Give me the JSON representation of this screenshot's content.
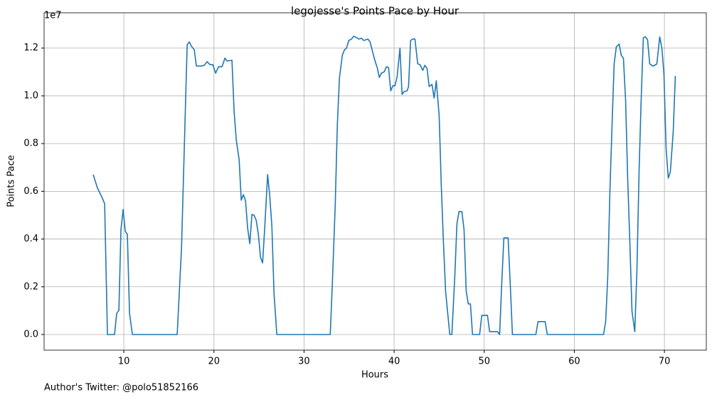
{
  "chart_data": {
    "type": "line",
    "title": "legojesse's Points Pace by Hour",
    "x_label": "Hours",
    "y_label": "Points Pace",
    "y_offset_label": "1e7",
    "footer": "Author's Twitter: @polo51852166",
    "grid": true,
    "xlim": [
      1.15,
      74.65
    ],
    "ylim": [
      -655000,
      13480000
    ],
    "xticks": [
      10,
      20,
      30,
      40,
      50,
      60,
      70
    ],
    "yticks": [
      {
        "value": 0,
        "label": "0.0"
      },
      {
        "value": 2000000,
        "label": "0.2"
      },
      {
        "value": 4000000,
        "label": "0.4"
      },
      {
        "value": 6000000,
        "label": "0.6"
      },
      {
        "value": 8000000,
        "label": "0.8"
      },
      {
        "value": 10000000,
        "label": "1.0"
      },
      {
        "value": 12000000,
        "label": "1.2"
      }
    ],
    "x": [
      6.6,
      7.08,
      7.55,
      7.87,
      8.18,
      8.97,
      9.21,
      9.45,
      9.68,
      9.92,
      10.16,
      10.39,
      10.63,
      10.95,
      15.92,
      16.4,
      16.87,
      17.03,
      17.27,
      17.5,
      17.82,
      18.05,
      18.6,
      18.93,
      19.24,
      19.56,
      19.87,
      20.19,
      20.51,
      20.9,
      21.22,
      21.45,
      22.0,
      22.24,
      22.48,
      22.8,
      23.03,
      23.27,
      23.51,
      23.74,
      23.98,
      24.22,
      24.45,
      24.69,
      24.93,
      25.17,
      25.4,
      25.64,
      25.96,
      26.19,
      26.43,
      26.67,
      26.98,
      32.91,
      33.14,
      33.46,
      33.7,
      33.93,
      34.25,
      34.49,
      34.72,
      34.96,
      35.28,
      35.51,
      35.83,
      36.07,
      36.38,
      36.62,
      36.86,
      37.09,
      37.33,
      37.65,
      37.88,
      38.12,
      38.36,
      38.59,
      38.91,
      39.15,
      39.38,
      39.62,
      39.86,
      40.09,
      40.33,
      40.65,
      40.88,
      41.12,
      41.44,
      41.6,
      41.83,
      42.07,
      42.31,
      42.62,
      42.86,
      43.18,
      43.41,
      43.65,
      43.89,
      44.2,
      44.44,
      44.68,
      45.0,
      45.23,
      45.47,
      45.71,
      45.94,
      46.18,
      46.41,
      46.73,
      46.97,
      47.2,
      47.52,
      47.76,
      48.0,
      48.23,
      48.47,
      48.7,
      49.49,
      49.73,
      50.36,
      50.6,
      51.47,
      51.71,
      51.94,
      52.18,
      52.65,
      52.89,
      53.13,
      55.73,
      55.97,
      56.76,
      57.0,
      63.24,
      63.48,
      63.71,
      63.95,
      64.19,
      64.42,
      64.66,
      64.98,
      65.21,
      65.45,
      65.69,
      65.92,
      66.16,
      66.4,
      66.71,
      66.95,
      67.19,
      67.42,
      67.66,
      67.9,
      68.13,
      68.37,
      68.69,
      68.93,
      69.16,
      69.48,
      69.72,
      69.95,
      70.19,
      70.43,
      70.66,
      70.98,
      71.21
    ],
    "series": [
      {
        "color": "#1f77b4",
        "values": [
          6700000,
          6130000,
          5770000,
          5480000,
          0,
          0,
          890000,
          1010000,
          4400000,
          5240000,
          4320000,
          4200000,
          890000,
          0,
          0,
          3600000,
          10000000,
          12140000,
          12260000,
          12080000,
          11930000,
          11250000,
          11250000,
          11280000,
          11430000,
          11310000,
          11310000,
          10950000,
          11220000,
          11220000,
          11580000,
          11460000,
          11490000,
          9350000,
          8150000,
          7320000,
          5630000,
          5860000,
          5600000,
          4460000,
          3810000,
          5030000,
          5000000,
          4790000,
          4200000,
          3240000,
          3000000,
          4490000,
          6700000,
          5830000,
          4550000,
          1730000,
          0,
          0,
          2110000,
          5390000,
          8810000,
          10740000,
          11700000,
          11930000,
          12000000,
          12320000,
          12380000,
          12500000,
          12440000,
          12380000,
          12410000,
          12320000,
          12350000,
          12380000,
          12260000,
          11790000,
          11460000,
          11190000,
          10770000,
          10950000,
          11010000,
          11220000,
          11190000,
          10210000,
          10420000,
          10420000,
          10800000,
          12000000,
          10060000,
          10180000,
          10210000,
          10390000,
          12320000,
          12380000,
          12380000,
          11340000,
          11310000,
          11070000,
          11280000,
          11160000,
          10390000,
          10480000,
          9910000,
          10630000,
          9170000,
          6280000,
          3900000,
          1820000,
          920000,
          0,
          0,
          2410000,
          4640000,
          5150000,
          5150000,
          4400000,
          1820000,
          1280000,
          1280000,
          0,
          0,
          800000,
          800000,
          120000,
          120000,
          0,
          2110000,
          4050000,
          4050000,
          2110000,
          0,
          0,
          540000,
          540000,
          0,
          0,
          540000,
          2410000,
          5980000,
          8810000,
          11340000,
          12050000,
          12170000,
          11700000,
          11580000,
          9850000,
          6580000,
          3900000,
          980000,
          120000,
          2710000,
          6880000,
          9850000,
          12440000,
          12470000,
          12350000,
          11340000,
          11250000,
          11280000,
          11340000,
          12470000,
          12000000,
          10890000,
          7770000,
          6550000,
          6820000,
          8510000,
          10830000
        ]
      }
    ]
  }
}
